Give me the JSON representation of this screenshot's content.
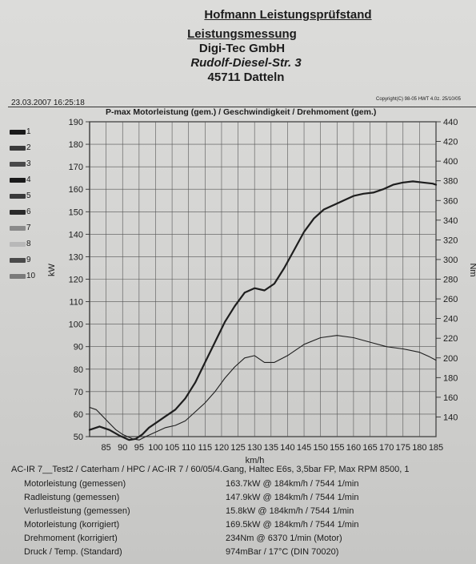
{
  "header": {
    "title": "Hofmann Leistungsprüfstand",
    "subtitle": "Leistungsmessung",
    "firm": "Digi-Tec GmbH",
    "street": "Rudolf-Diesel-Str. 3",
    "city": "45711 Datteln"
  },
  "datetime": "23.03.2007 16:25:18",
  "copyright": "Copyright(C) 98-05 HWT 4.0z. 25/10/05",
  "legend_items": [
    "1",
    "2",
    "3",
    "4",
    "5",
    "6",
    "7",
    "8",
    "9",
    "10"
  ],
  "colors": {
    "curve": "#1e1e1e",
    "grid": "#555555",
    "legend": [
      "#1a1a1a",
      "#3a3a3a",
      "#4a4a4a",
      "#1a1a1a",
      "#3a3a3a",
      "#2a2a2a",
      "#8a8a8a",
      "#b8b8b8",
      "#4a4a4a",
      "#7a7a7a"
    ]
  },
  "chart_data": {
    "type": "line",
    "title": "P-max Motorleistung (gem.) / Geschwindigkeit / Drehmoment (gem.)",
    "xlabel": "km/h",
    "ylabel_left": "kW",
    "ylabel_right": "Nm",
    "xlim": [
      80,
      185
    ],
    "ylim_left": [
      50,
      190
    ],
    "ylim_right": [
      120,
      440
    ],
    "x_ticks": [
      85,
      90,
      95,
      100,
      105,
      110,
      115,
      120,
      125,
      130,
      135,
      140,
      145,
      150,
      155,
      160,
      165,
      170,
      175,
      180,
      185
    ],
    "y_ticks_left": [
      50,
      60,
      70,
      80,
      90,
      100,
      110,
      120,
      130,
      140,
      150,
      160,
      170,
      180,
      190
    ],
    "y_ticks_right": [
      140,
      160,
      180,
      200,
      220,
      240,
      260,
      280,
      300,
      320,
      340,
      360,
      380,
      400,
      420,
      440
    ],
    "grid": true,
    "series": [
      {
        "axis": "left",
        "x": [
          80,
          83,
          86,
          89,
          92,
          94,
          96,
          98,
          100,
          103,
          106,
          109,
          112,
          115,
          118,
          121,
          124,
          127,
          130,
          133,
          136,
          139,
          142,
          145,
          148,
          151,
          154,
          157,
          160,
          163,
          166,
          169,
          172,
          175,
          178,
          181,
          184,
          185
        ],
        "y": [
          53,
          54.5,
          53,
          50.5,
          48.5,
          49,
          51,
          54,
          56,
          59,
          62,
          67,
          74,
          83,
          92,
          101,
          108,
          114,
          116,
          115,
          118,
          125,
          133,
          141,
          147,
          151,
          153,
          155,
          157,
          158,
          158.5,
          160,
          162,
          163,
          163.5,
          163,
          162.5,
          162
        ]
      },
      {
        "axis": "left",
        "x": [
          80,
          82,
          84,
          86,
          88,
          90,
          93,
          95,
          97,
          100,
          103,
          106,
          109,
          112,
          115,
          118,
          121,
          124,
          127,
          130,
          133,
          136,
          140,
          145,
          150,
          155,
          160,
          165,
          170,
          175,
          180,
          183,
          185
        ],
        "y": [
          63,
          62,
          59,
          56,
          53,
          51,
          49,
          48.5,
          50,
          52,
          54,
          55,
          57,
          61,
          65,
          70,
          76,
          81,
          85,
          86,
          83,
          83,
          86,
          91,
          94,
          95,
          94,
          92,
          90,
          89,
          87.5,
          85.5,
          84
        ]
      }
    ]
  },
  "info": {
    "test_line": "AC-IR 7__Test2 / Caterham / HPC / AC-IR 7 / 60/05/4.Gang, Haltec E6s, 3,5bar FP, Max RPM 8500, 1",
    "rows": [
      {
        "label": "Motorleistung (gemessen)",
        "value": "163.7kW @ 184km/h / 7544 1/min"
      },
      {
        "label": "Radleistung (gemessen)",
        "value": "147.9kW @ 184km/h / 7544 1/min"
      },
      {
        "label": "Verlustleistung (gemessen)",
        "value": "15.8kW @ 184km/h / 7544 1/min"
      },
      {
        "label": "Motorleistung (korrigiert)",
        "value": "169.5kW @ 184km/h / 7544 1/min"
      },
      {
        "label": "Drehmoment (korrigiert)",
        "value": "234Nm @ 6370 1/min (Motor)"
      },
      {
        "label": "Druck / Temp. (Standard)",
        "value": "974mBar / 17°C  (DIN 70020)"
      }
    ]
  }
}
